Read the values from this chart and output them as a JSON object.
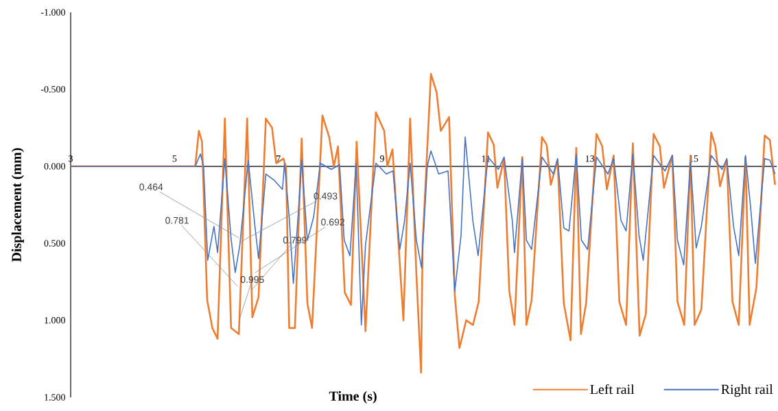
{
  "chart_data": {
    "type": "line",
    "xlabel": "Time (s)",
    "ylabel": "Displacement (mm)",
    "xlim": [
      3,
      16.6
    ],
    "xticks": [
      3,
      5,
      7,
      9,
      11,
      13,
      15
    ],
    "ylim": [
      1.5,
      -1
    ],
    "yticks": [
      {
        "value": -1,
        "label": "-1.000"
      },
      {
        "value": -0.5,
        "label": "-0.500"
      },
      {
        "value": 0,
        "label": "0.000"
      },
      {
        "value": 0.5,
        "label": "0.500"
      },
      {
        "value": 1,
        "label": "1.000"
      },
      {
        "value": 1.5,
        "label": "1.500"
      }
    ],
    "grid": false,
    "legend": "bottom right",
    "marker": "none",
    "line_style": "solid",
    "series": [
      {
        "name": "Left rail",
        "color": "#ed7d31",
        "x": [
          3,
          5.3,
          5.4,
          5.47,
          5.53,
          5.63,
          5.73,
          5.83,
          5.97,
          6.09,
          6.24,
          6.4,
          6.5,
          6.62,
          6.76,
          6.88,
          6.96,
          7.1,
          7.15,
          7.21,
          7.32,
          7.45,
          7.56,
          7.65,
          7.85,
          7.98,
          8.07,
          8.15,
          8.28,
          8.4,
          8.51,
          8.68,
          8.88,
          9.04,
          9.1,
          9.2,
          9.41,
          9.54,
          9.66,
          9.75,
          9.78,
          9.94,
          10.05,
          10.13,
          10.29,
          10.4,
          10.49,
          10.62,
          10.75,
          10.86,
          11.04,
          11.15,
          11.22,
          11.35,
          11.45,
          11.55,
          11.7,
          11.78,
          11.88,
          12.08,
          12.17,
          12.25,
          12.38,
          12.5,
          12.63,
          12.74,
          12.83,
          12.93,
          13.13,
          13.24,
          13.33,
          13.46,
          13.57,
          13.7,
          13.83,
          13.96,
          14.08,
          14.23,
          14.35,
          14.43,
          14.59,
          14.69,
          14.82,
          14.94,
          15.02,
          15.15,
          15.34,
          15.42,
          15.51,
          15.64,
          15.75,
          15.87,
          16.0,
          16.08,
          16.21,
          16.37,
          16.47,
          16.57
        ],
        "values": [
          0,
          0,
          0,
          -0.23,
          -0.16,
          0.87,
          1.05,
          1.12,
          -0.31,
          1.05,
          1.09,
          -0.31,
          0.98,
          0.85,
          -0.31,
          -0.25,
          -0.02,
          -0.05,
          0.01,
          1.05,
          1.05,
          -0.18,
          0.89,
          1.05,
          -0.33,
          -0.19,
          0.0,
          -0.13,
          0.82,
          0.9,
          -0.16,
          1.07,
          -0.35,
          -0.23,
          0.0,
          -0.11,
          1.0,
          -0.31,
          0.7,
          1.34,
          0.5,
          -0.6,
          -0.48,
          -0.23,
          -0.32,
          0.84,
          1.18,
          1.0,
          1.03,
          0.88,
          -0.22,
          -0.14,
          0.14,
          -0.05,
          0.81,
          1.03,
          -0.06,
          1.03,
          0.87,
          -0.19,
          -0.14,
          0.12,
          -0.04,
          0.89,
          1.13,
          -0.12,
          1.09,
          0.89,
          -0.21,
          -0.13,
          0.15,
          -0.07,
          0.88,
          1.03,
          -0.15,
          1.1,
          0.96,
          -0.21,
          -0.13,
          0.14,
          -0.07,
          0.88,
          1.03,
          -0.07,
          1.03,
          0.93,
          -0.22,
          -0.13,
          0.13,
          -0.04,
          0.88,
          1.03,
          -0.06,
          1.03,
          0.79,
          -0.2,
          -0.17,
          0.12
        ]
      },
      {
        "name": "Right rail",
        "color": "#4472c4",
        "x": [
          3,
          5.4,
          5.5,
          5.56,
          5.64,
          5.76,
          5.83,
          5.97,
          6.09,
          6.17,
          6.26,
          6.42,
          6.55,
          6.62,
          6.76,
          6.92,
          7.08,
          7.12,
          7.21,
          7.29,
          7.39,
          7.45,
          7.56,
          7.68,
          7.81,
          8.02,
          8.18,
          8.27,
          8.38,
          8.5,
          8.6,
          8.68,
          8.88,
          9.08,
          9.21,
          9.34,
          9.43,
          9.54,
          9.66,
          9.76,
          9.87,
          9.94,
          10.09,
          10.27,
          10.4,
          10.52,
          10.6,
          10.75,
          10.85,
          11.04,
          11.24,
          11.35,
          11.51,
          11.55,
          11.7,
          11.78,
          11.88,
          12.08,
          12.3,
          12.38,
          12.5,
          12.6,
          12.74,
          12.84,
          12.96,
          13.13,
          13.35,
          13.46,
          13.6,
          13.7,
          13.83,
          13.95,
          14.03,
          14.23,
          14.45,
          14.59,
          14.69,
          14.81,
          14.94,
          15.05,
          15.15,
          15.34,
          15.55,
          15.64,
          15.77,
          15.87,
          16.0,
          16.1,
          16.19,
          16.37,
          16.47,
          16.57
        ],
        "values": [
          0,
          0,
          -0.08,
          0.0,
          0.61,
          0.39,
          0.56,
          -0.05,
          0.47,
          0.69,
          0.51,
          -0.04,
          0.39,
          0.6,
          0.05,
          0.09,
          0.15,
          -0.02,
          0.33,
          0.76,
          0.28,
          -0.04,
          0.48,
          0.33,
          -0.02,
          0.02,
          -0.01,
          0.48,
          0.58,
          -0.02,
          1.03,
          0.51,
          -0.02,
          0.05,
          0.03,
          0.54,
          0.36,
          -0.02,
          0.48,
          0.66,
          0.0,
          -0.1,
          0.05,
          0.03,
          0.81,
          0.45,
          -0.19,
          0.36,
          0.58,
          -0.06,
          0.02,
          -0.06,
          0.36,
          0.56,
          -0.05,
          0.48,
          0.54,
          -0.06,
          0.05,
          -0.05,
          0.4,
          0.42,
          -0.08,
          0.48,
          0.54,
          -0.06,
          0.05,
          -0.05,
          0.35,
          0.42,
          -0.08,
          0.45,
          0.61,
          -0.07,
          0.03,
          -0.07,
          0.48,
          0.64,
          -0.03,
          0.53,
          0.39,
          -0.07,
          0.02,
          -0.05,
          0.39,
          0.58,
          -0.07,
          0.27,
          0.63,
          -0.05,
          -0.04,
          0.05
        ]
      }
    ],
    "annotations": [
      {
        "text": "0.464",
        "x": 6.24,
        "y": 0.464
      },
      {
        "text": "0.781",
        "x": 6.22,
        "y": 0.781
      },
      {
        "text": "0.493",
        "x": 6.26,
        "y": 0.493
      },
      {
        "text": "0.799",
        "x": 6.5,
        "y": 0.799
      },
      {
        "text": "0.692",
        "x": 6.55,
        "y": 0.692
      },
      {
        "text": "0.995",
        "x": 6.25,
        "y": 0.995
      }
    ]
  }
}
